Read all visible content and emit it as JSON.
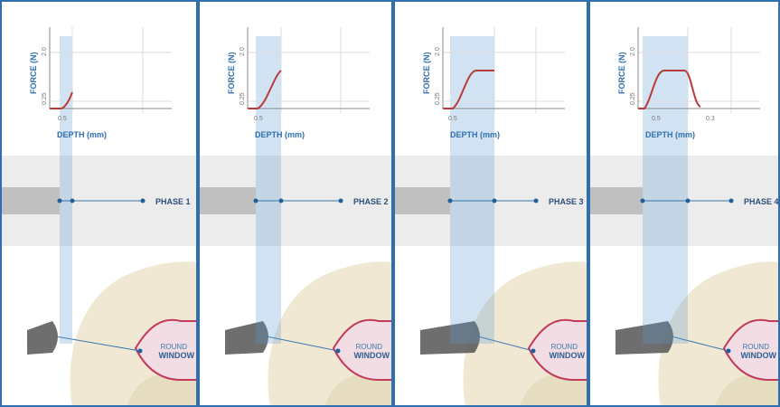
{
  "panels": [
    {
      "y_label": "FORCE (N)",
      "y_ticks": [
        "2.0",
        "0.25"
      ],
      "x_label": "DEPTH (mm)",
      "x_ticks": [
        "0.5"
      ],
      "phase": "PHASE 1",
      "window_label": [
        "ROUND",
        "WINDOW"
      ]
    },
    {
      "y_label": "FORCE (N)",
      "y_ticks": [
        "2.0",
        "0.25"
      ],
      "x_label": "DEPTH (mm)",
      "x_ticks": [
        "0.5"
      ],
      "phase": "PHASE 2",
      "window_label": [
        "ROUND",
        "WINDOW"
      ]
    },
    {
      "y_label": "FORCE (N)",
      "y_ticks": [
        "2.0",
        "0.25"
      ],
      "x_label": "DEPTH (mm)",
      "x_ticks": [
        "0.5"
      ],
      "phase": "PHASE 3",
      "window_label": [
        "ROUND",
        "WINDOW"
      ]
    },
    {
      "y_label": "FORCE (N)",
      "y_ticks": [
        "2.0",
        "0.25"
      ],
      "x_label": "DEPTH (mm)",
      "x_ticks": [
        "0.5",
        "0.3"
      ],
      "phase": "PHASE 4",
      "window_label": [
        "ROUND",
        "WINDOW"
      ]
    }
  ]
}
